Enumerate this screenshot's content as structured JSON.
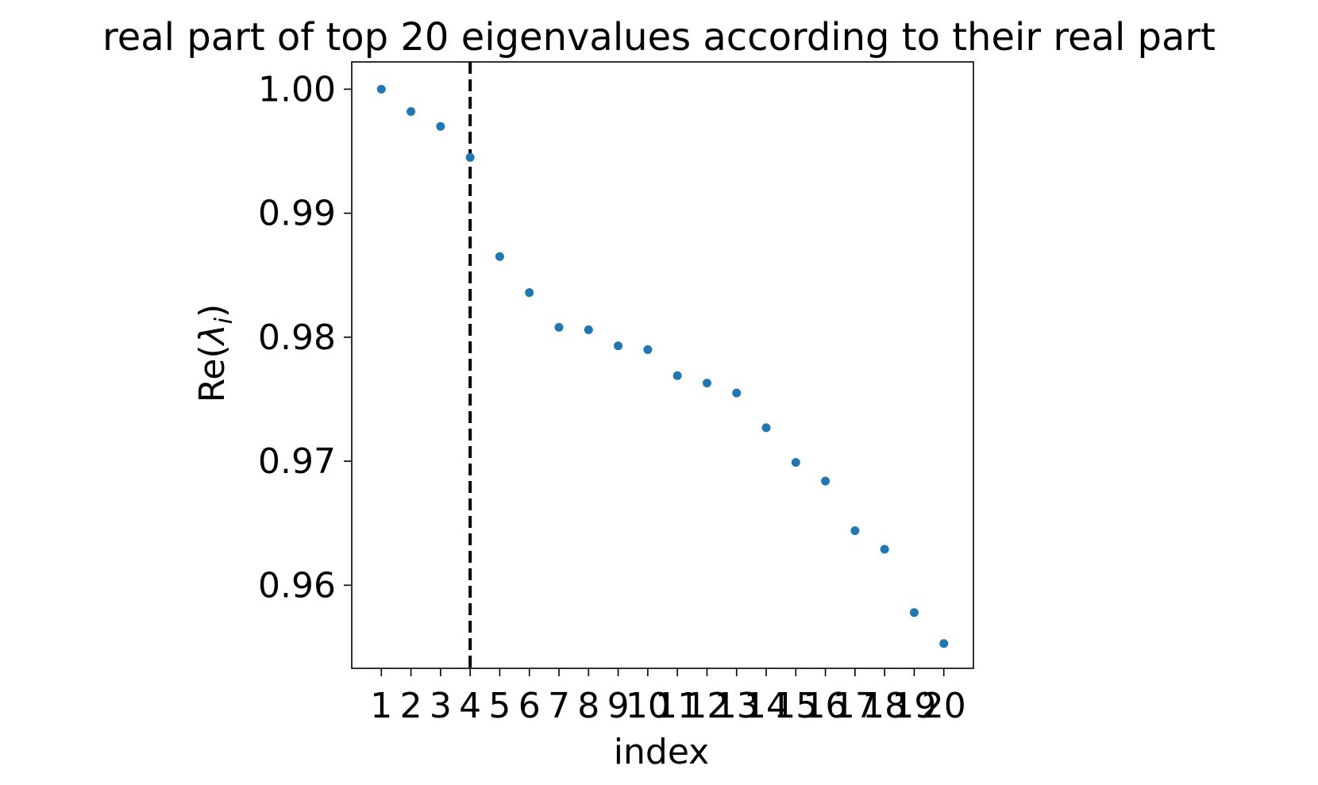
{
  "chart_data": {
    "type": "scatter",
    "title": "real part of top 20 eigenvalues according to their real part",
    "xlabel": "index",
    "ylabel": "Re(λ_i)",
    "ylabel_parts": {
      "prefix": "Re(",
      "symbol": "λ",
      "subscript": "i",
      "suffix": ")"
    },
    "xlim": [
      0,
      21
    ],
    "ylim": [
      0.9533,
      1.0022
    ],
    "x_ticks": [
      "1",
      "2",
      "3",
      "4",
      "5",
      "6",
      "7",
      "8",
      "9",
      "10",
      "11",
      "12",
      "13",
      "14",
      "15",
      "16",
      "17",
      "18",
      "19",
      "20"
    ],
    "y_ticks": [
      "0.96",
      "0.97",
      "0.98",
      "0.99",
      "1.00"
    ],
    "y_tick_values": [
      0.96,
      0.97,
      0.98,
      0.99,
      1.0
    ],
    "x": [
      1,
      2,
      3,
      4,
      5,
      6,
      7,
      8,
      9,
      10,
      11,
      12,
      13,
      14,
      15,
      16,
      17,
      18,
      19,
      20
    ],
    "y": [
      1.0,
      0.9982,
      0.997,
      0.9945,
      0.9865,
      0.9836,
      0.9808,
      0.9806,
      0.9793,
      0.979,
      0.9769,
      0.9763,
      0.9755,
      0.9727,
      0.9699,
      0.9684,
      0.9644,
      0.9629,
      0.9578,
      0.9553
    ],
    "vline": {
      "x": 4,
      "style": "dashed",
      "color": "#000000"
    },
    "marker_color": "#1f77b4",
    "grid": false,
    "legend": "none"
  }
}
